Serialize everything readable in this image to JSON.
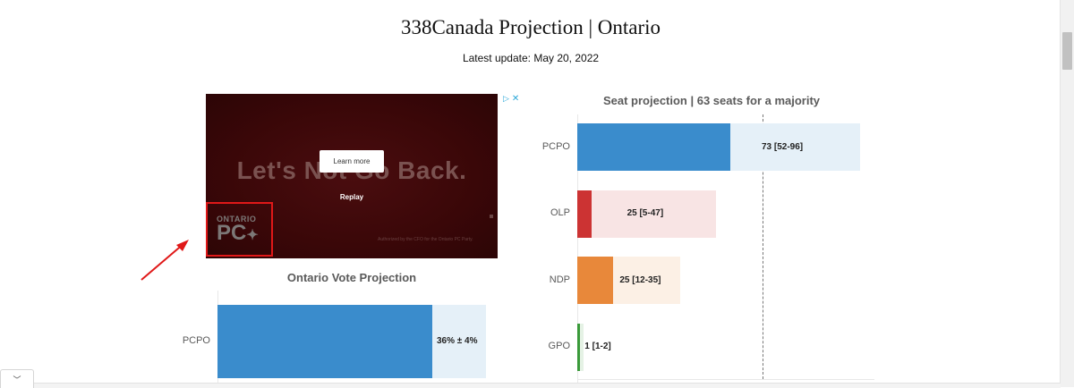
{
  "page": {
    "title": "338Canada Projection | Ontario",
    "updated": "Latest update: May 20, 2022"
  },
  "ad": {
    "headline": "Let's Not Go Back.",
    "learn_more": "Learn more",
    "replay": "Replay",
    "logo_line1": "ONTARIO",
    "logo_line2": "PC",
    "fine_print": "Authorized by the CFO for the Ontario PC Party."
  },
  "colors": {
    "PCPO": "#3a8ccc",
    "OLP": "#cc3333",
    "NDP": "#e8883a",
    "GPO": "#3a9a3a",
    "annotation": "#e01818"
  },
  "chart_data": [
    {
      "type": "bar",
      "orientation": "horizontal",
      "title": "Ontario Vote Projection",
      "categories": [
        "PCPO"
      ],
      "values": [
        36
      ],
      "error": [
        4
      ],
      "labels": [
        "36% ± 4%"
      ],
      "xlim": [
        0,
        40
      ]
    },
    {
      "type": "bar",
      "orientation": "horizontal",
      "title": "Seat projection | 63 seats for a majority",
      "categories": [
        "PCPO",
        "OLP",
        "NDP",
        "GPO"
      ],
      "values": [
        73,
        25,
        25,
        1
      ],
      "low": [
        52,
        5,
        12,
        1
      ],
      "high": [
        96,
        47,
        35,
        2
      ],
      "labels": [
        "73 [52-96]",
        "25 [5-47]",
        "25 [12-35]",
        "1 [1-2]"
      ],
      "majority": 63,
      "xlim": [
        0,
        96
      ]
    }
  ]
}
